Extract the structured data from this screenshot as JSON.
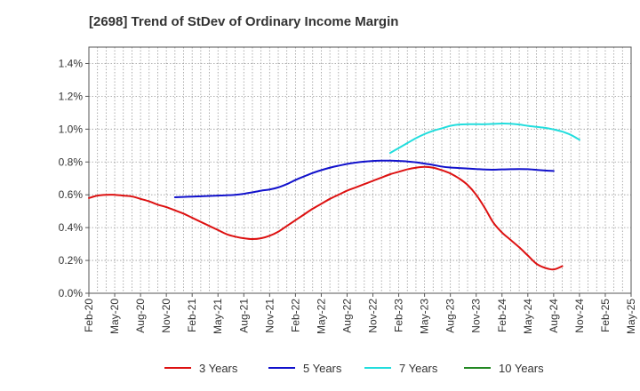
{
  "chart_data": {
    "type": "line",
    "title": "[2698]  Trend of StDev of Ordinary Income Margin",
    "xlabel": "",
    "ylabel": "",
    "x_ticks": [
      "Feb-20",
      "May-20",
      "Aug-20",
      "Nov-20",
      "Feb-21",
      "May-21",
      "Aug-21",
      "Nov-21",
      "Feb-22",
      "May-22",
      "Aug-22",
      "Nov-22",
      "Feb-23",
      "May-23",
      "Aug-23",
      "Nov-23",
      "Feb-24",
      "May-24",
      "Aug-24",
      "Nov-24",
      "Feb-25",
      "May-25"
    ],
    "y_ticks": [
      "0.0%",
      "0.2%",
      "0.4%",
      "0.6%",
      "0.8%",
      "1.0%",
      "1.2%",
      "1.4%"
    ],
    "ylim": [
      0,
      1.5
    ],
    "grid": true,
    "legend_position": "bottom",
    "series": [
      {
        "name": "3 Years",
        "color": "#dd1111",
        "points": [
          [
            "Feb-20",
            0.58
          ],
          [
            "Mar-20",
            0.595
          ],
          [
            "Apr-20",
            0.6
          ],
          [
            "May-20",
            0.6
          ],
          [
            "Jun-20",
            0.595
          ],
          [
            "Jul-20",
            0.59
          ],
          [
            "Aug-20",
            0.575
          ],
          [
            "Sep-20",
            0.56
          ],
          [
            "Oct-20",
            0.54
          ],
          [
            "Nov-20",
            0.525
          ],
          [
            "Dec-20",
            0.505
          ],
          [
            "Jan-21",
            0.485
          ],
          [
            "Feb-21",
            0.46
          ],
          [
            "Mar-21",
            0.435
          ],
          [
            "Apr-21",
            0.41
          ],
          [
            "May-21",
            0.385
          ],
          [
            "Jun-21",
            0.36
          ],
          [
            "Jul-21",
            0.345
          ],
          [
            "Aug-21",
            0.335
          ],
          [
            "Sep-21",
            0.33
          ],
          [
            "Oct-21",
            0.335
          ],
          [
            "Nov-21",
            0.35
          ],
          [
            "Dec-21",
            0.375
          ],
          [
            "Jan-22",
            0.41
          ],
          [
            "Feb-22",
            0.445
          ],
          [
            "Mar-22",
            0.48
          ],
          [
            "Apr-22",
            0.515
          ],
          [
            "May-22",
            0.545
          ],
          [
            "Jun-22",
            0.575
          ],
          [
            "Jul-22",
            0.6
          ],
          [
            "Aug-22",
            0.625
          ],
          [
            "Sep-22",
            0.645
          ],
          [
            "Oct-22",
            0.665
          ],
          [
            "Nov-22",
            0.685
          ],
          [
            "Dec-22",
            0.705
          ],
          [
            "Jan-23",
            0.725
          ],
          [
            "Feb-23",
            0.74
          ],
          [
            "Mar-23",
            0.755
          ],
          [
            "Apr-23",
            0.765
          ],
          [
            "May-23",
            0.77
          ],
          [
            "Jun-23",
            0.765
          ],
          [
            "Jul-23",
            0.75
          ],
          [
            "Aug-23",
            0.73
          ],
          [
            "Sep-23",
            0.7
          ],
          [
            "Oct-23",
            0.66
          ],
          [
            "Nov-23",
            0.6
          ],
          [
            "Dec-23",
            0.52
          ],
          [
            "Jan-24",
            0.43
          ],
          [
            "Feb-24",
            0.37
          ],
          [
            "Mar-24",
            0.325
          ],
          [
            "Apr-24",
            0.28
          ],
          [
            "May-24",
            0.23
          ],
          [
            "Jun-24",
            0.18
          ],
          [
            "Jul-24",
            0.155
          ],
          [
            "Aug-24",
            0.145
          ],
          [
            "Sep-24",
            0.165
          ]
        ],
        "x_offset_months": 0
      },
      {
        "name": "5 Years",
        "color": "#1111cc",
        "points": [
          [
            "Dec-20",
            0.585
          ],
          [
            "Jan-21",
            0.587
          ],
          [
            "Feb-21",
            0.589
          ],
          [
            "Mar-21",
            0.591
          ],
          [
            "Apr-21",
            0.593
          ],
          [
            "May-21",
            0.595
          ],
          [
            "Jun-21",
            0.597
          ],
          [
            "Jul-21",
            0.6
          ],
          [
            "Aug-21",
            0.606
          ],
          [
            "Sep-21",
            0.615
          ],
          [
            "Oct-21",
            0.625
          ],
          [
            "Nov-21",
            0.632
          ],
          [
            "Dec-21",
            0.645
          ],
          [
            "Jan-22",
            0.665
          ],
          [
            "Feb-22",
            0.69
          ],
          [
            "Mar-22",
            0.712
          ],
          [
            "Apr-22",
            0.733
          ],
          [
            "May-22",
            0.75
          ],
          [
            "Jun-22",
            0.765
          ],
          [
            "Jul-22",
            0.777
          ],
          [
            "Aug-22",
            0.788
          ],
          [
            "Sep-22",
            0.796
          ],
          [
            "Oct-22",
            0.802
          ],
          [
            "Nov-22",
            0.806
          ],
          [
            "Dec-22",
            0.808
          ],
          [
            "Jan-23",
            0.808
          ],
          [
            "Feb-23",
            0.806
          ],
          [
            "Mar-23",
            0.803
          ],
          [
            "Apr-23",
            0.798
          ],
          [
            "May-23",
            0.79
          ],
          [
            "Jun-23",
            0.782
          ],
          [
            "Jul-23",
            0.772
          ],
          [
            "Aug-23",
            0.766
          ],
          [
            "Sep-23",
            0.763
          ],
          [
            "Oct-23",
            0.76
          ],
          [
            "Nov-23",
            0.757
          ],
          [
            "Dec-23",
            0.754
          ],
          [
            "Jan-24",
            0.753
          ],
          [
            "Feb-24",
            0.755
          ],
          [
            "Mar-24",
            0.756
          ],
          [
            "Apr-24",
            0.757
          ],
          [
            "May-24",
            0.756
          ],
          [
            "Jun-24",
            0.752
          ],
          [
            "Jul-24",
            0.748
          ],
          [
            "Aug-24",
            0.745
          ]
        ]
      },
      {
        "name": "7 Years",
        "color": "#22dddd",
        "points": [
          [
            "Jan-23",
            0.855
          ],
          [
            "Feb-23",
            0.885
          ],
          [
            "Mar-23",
            0.915
          ],
          [
            "Apr-23",
            0.945
          ],
          [
            "May-23",
            0.97
          ],
          [
            "Jun-23",
            0.99
          ],
          [
            "Jul-23",
            1.005
          ],
          [
            "Aug-23",
            1.02
          ],
          [
            "Sep-23",
            1.028
          ],
          [
            "Oct-23",
            1.03
          ],
          [
            "Nov-23",
            1.03
          ],
          [
            "Dec-23",
            1.03
          ],
          [
            "Jan-24",
            1.032
          ],
          [
            "Feb-24",
            1.034
          ],
          [
            "Mar-24",
            1.033
          ],
          [
            "Apr-24",
            1.028
          ],
          [
            "May-24",
            1.02
          ],
          [
            "Jun-24",
            1.014
          ],
          [
            "Jul-24",
            1.008
          ],
          [
            "Aug-24",
            0.998
          ],
          [
            "Sep-24",
            0.985
          ],
          [
            "Oct-24",
            0.965
          ],
          [
            "Nov-24",
            0.935
          ]
        ]
      },
      {
        "name": "10 Years",
        "color": "#228822",
        "points": []
      }
    ]
  }
}
